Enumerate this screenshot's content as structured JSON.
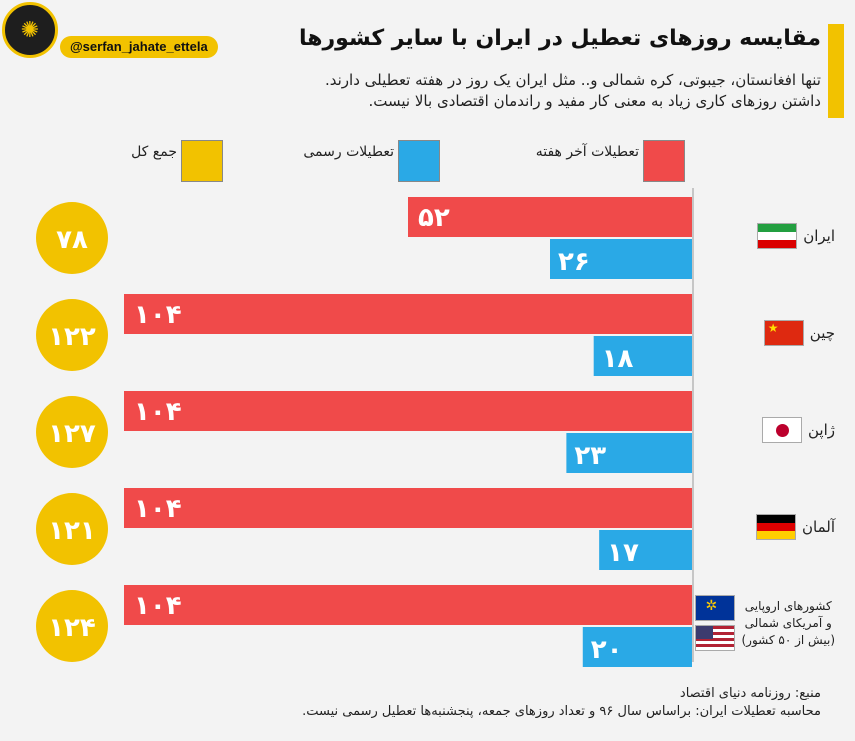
{
  "handle": "@serfan_jahate_ettela",
  "title": "مقایسه روزهای تعطیل در ایران با سایر کشورها",
  "subtitle_line1": "تنها افغانستان، جیبوتی، کره شمالی و.. مثل ایران یک روز در هفته تعطیلی دارند.",
  "subtitle_line2": "داشتن روزهای کاری زیاد به معنی کار مفید و راندمان اقتصادی بالا نیست.",
  "source_line1": "منبع: روزنامه دنیای اقتصاد",
  "source_line2": "محاسبه تعطیلات ایران: براساس سال ۹۶ و تعداد روزهای جمعه، پنجشنبه‌ها تعطیل رسمی نیست.",
  "colors": {
    "weekend": "#f04a4a",
    "official": "#2aa9e6",
    "total": "#f2c200"
  },
  "chart_data": {
    "type": "bar",
    "orientation": "horizontal",
    "legend": [
      {
        "name": "تعطیلات آخر هفته",
        "color": "#f04a4a"
      },
      {
        "name": "تعطیلات رسمی",
        "color": "#2aa9e6"
      },
      {
        "name": "جمع کل",
        "color": "#f2c200"
      }
    ],
    "categories": [
      {
        "name": "ایران",
        "flag": "iran",
        "weekend": 52,
        "official": 26,
        "total": 78,
        "weekend_label": "۵۲",
        "official_label": "۲۶",
        "total_label": "۷۸"
      },
      {
        "name": "چین",
        "flag": "china",
        "weekend": 104,
        "official": 18,
        "total": 122,
        "weekend_label": "۱۰۴",
        "official_label": "۱۸",
        "total_label": "۱۲۲"
      },
      {
        "name": "ژاپن",
        "flag": "japan",
        "weekend": 104,
        "official": 23,
        "total": 127,
        "weekend_label": "۱۰۴",
        "official_label": "۲۳",
        "total_label": "۱۲۷"
      },
      {
        "name": "آلمان",
        "flag": "germany",
        "weekend": 104,
        "official": 17,
        "total": 121,
        "weekend_label": "۱۰۴",
        "official_label": "۱۷",
        "total_label": "۱۲۱"
      },
      {
        "name": "کشورهای اروپایی و آمریکای شمالی (بیش از ۵۰ کشور)",
        "flag": "eu-us",
        "name_lines": [
          "کشورهای اروپایی",
          "و آمریکای شمالی",
          "(بیش از ۵۰ کشور)"
        ],
        "weekend": 104,
        "official": 20,
        "total": 124,
        "weekend_label": "۱۰۴",
        "official_label": "۲۰",
        "total_label": "۱۲۴"
      }
    ]
  }
}
